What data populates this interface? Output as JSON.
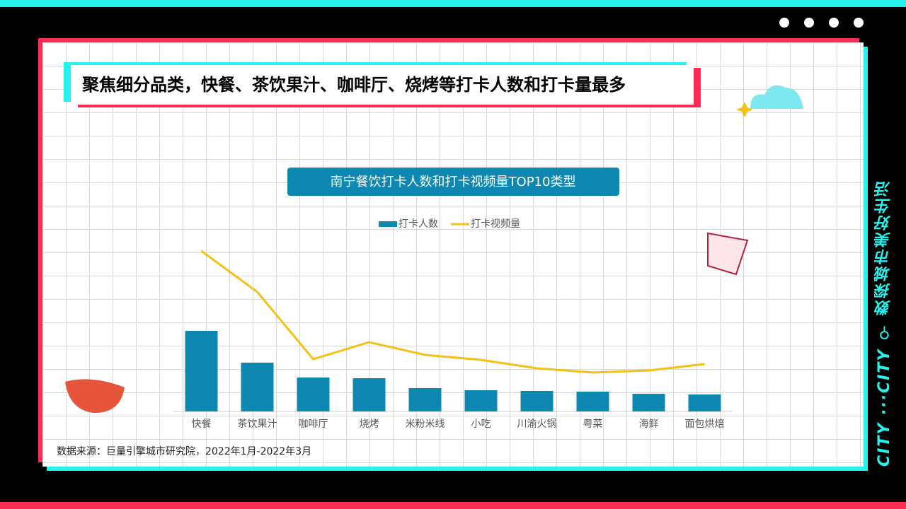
{
  "header": {
    "title": "聚焦细分品类，快餐、茶饮果汁、咖啡厅、烧烤等打卡人数和打卡量最多"
  },
  "side": {
    "slogan": "数探城市美好生活",
    "brand": "CITY ···CITY"
  },
  "source": "数据来源：巨量引擎城市研究院，2022年1月-2022年3月",
  "chart_data": {
    "type": "combo",
    "title": "南宁餐饮打卡人数和打卡视频量TOP10类型",
    "categories": [
      "快餐",
      "茶饮果汁",
      "咖啡厅",
      "烧烤",
      "米粉米线",
      "小吃",
      "川渝火锅",
      "粤菜",
      "海鲜",
      "面包烘焙"
    ],
    "series": [
      {
        "name": "打卡人数",
        "type": "bar",
        "color": "#0e88b3",
        "values": [
          114,
          69,
          48,
          47,
          33,
          30,
          29,
          28,
          25,
          24
        ]
      },
      {
        "name": "打卡视频量",
        "type": "line",
        "color": "#f5c018",
        "axis": "y2",
        "values": [
          227,
          169,
          74,
          98,
          80,
          73,
          61,
          55,
          58,
          67
        ]
      }
    ],
    "ylim": [
      0,
      250
    ],
    "y2lim": [
      0,
      250
    ],
    "legend": "top"
  }
}
